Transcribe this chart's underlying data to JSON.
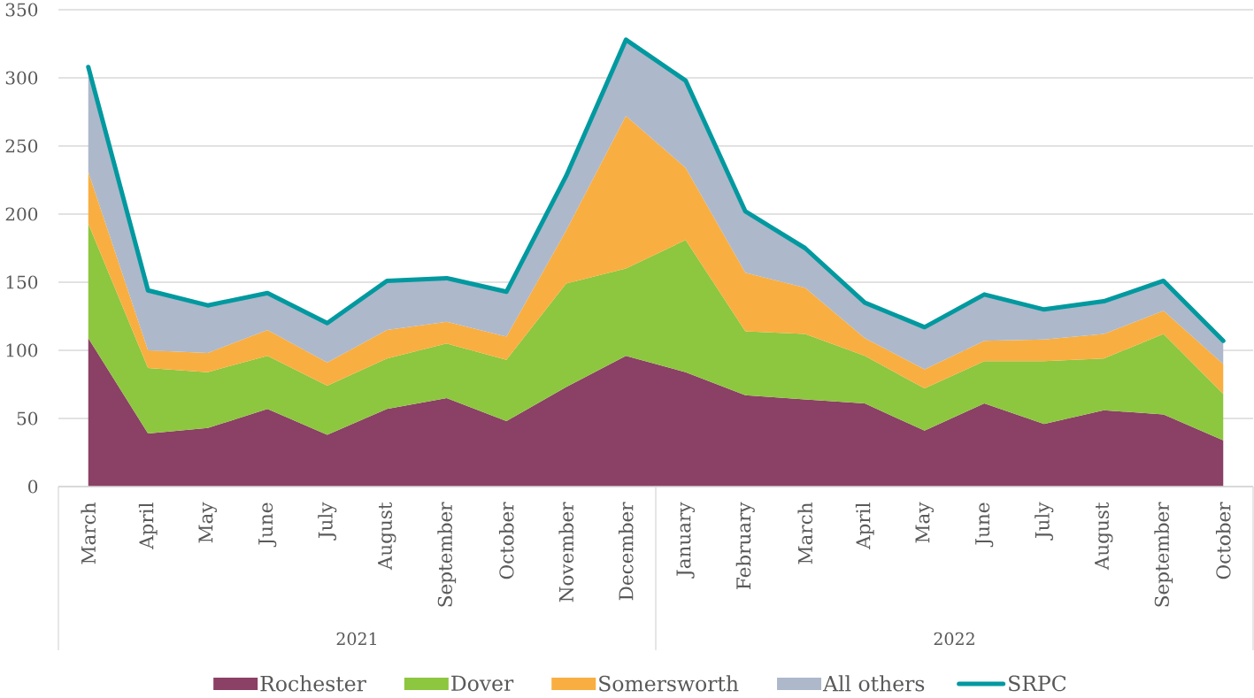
{
  "chart_data": [
    {
      "type": "area",
      "stacked": true,
      "categories": [
        "March",
        "April",
        "May",
        "June",
        "July",
        "August",
        "September",
        "October",
        "November",
        "December",
        "January",
        "February",
        "March",
        "April",
        "May",
        "June",
        "July",
        "August",
        "September",
        "October"
      ],
      "series": [
        {
          "name": "Rochester",
          "color": "#8b4065",
          "values": [
            109,
            39,
            43,
            57,
            38,
            57,
            65,
            48,
            73,
            96,
            84,
            67,
            64,
            61,
            41,
            61,
            46,
            56,
            53,
            34
          ]
        },
        {
          "name": "Dover",
          "color": "#8dc63f",
          "values": [
            84,
            48,
            41,
            39,
            36,
            37,
            40,
            45,
            76,
            64,
            97,
            47,
            48,
            35,
            31,
            31,
            46,
            38,
            59,
            34
          ]
        },
        {
          "name": "Somersworth",
          "color": "#f9ae41",
          "values": [
            38,
            13,
            14,
            19,
            17,
            21,
            16,
            17,
            39,
            112,
            53,
            43,
            34,
            13,
            14,
            15,
            16,
            18,
            17,
            22
          ]
        },
        {
          "name": "All others",
          "color": "#adb8ca",
          "values": [
            77,
            44,
            35,
            27,
            29,
            36,
            32,
            33,
            40,
            56,
            64,
            45,
            29,
            26,
            31,
            34,
            22,
            24,
            22,
            17
          ]
        }
      ],
      "ylim": [
        0,
        350
      ],
      "yticks": [
        0,
        50,
        100,
        150,
        200,
        250,
        300,
        350
      ],
      "grid": "y",
      "legend": "bottom",
      "annotations": [
        "2021",
        "2022"
      ]
    },
    {
      "type": "line",
      "categories": [
        null,
        null,
        null,
        null,
        null,
        null,
        null,
        null,
        null,
        null,
        null,
        null,
        null,
        null,
        null,
        null,
        null,
        null,
        null,
        null
      ],
      "series": [
        {
          "name": "SRPC",
          "color": "#00999f",
          "values": [
            308,
            144,
            133,
            142,
            120,
            151,
            153,
            143,
            228,
            328,
            298,
            202,
            175,
            135,
            117,
            141,
            130,
            136,
            151,
            107
          ]
        }
      ],
      "ylim": [
        0,
        350
      ],
      "legend": "bottom"
    }
  ]
}
